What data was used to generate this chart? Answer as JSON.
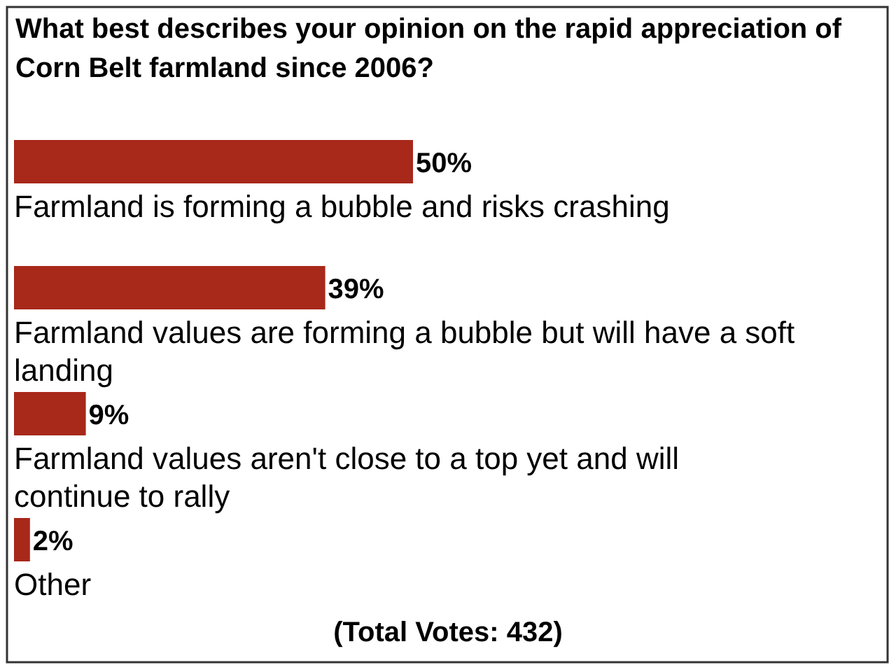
{
  "chart_data": {
    "type": "bar",
    "orientation": "horizontal",
    "title": "What best describes your opinion on the rapid appreciation of Corn Belt farmland since 2006?",
    "categories": [
      "Farmland is forming a bubble and risks crashing",
      "Farmland values are forming a bubble but will have a soft landing",
      "Farmland values aren't close to a top yet and will continue to rally",
      "Other"
    ],
    "values": [
      50,
      39,
      9,
      2
    ],
    "value_labels": [
      "50%",
      "39%",
      "9%",
      "2%"
    ],
    "color": "#a8281a",
    "annotations": [
      "(Total Votes: 432)"
    ]
  }
}
